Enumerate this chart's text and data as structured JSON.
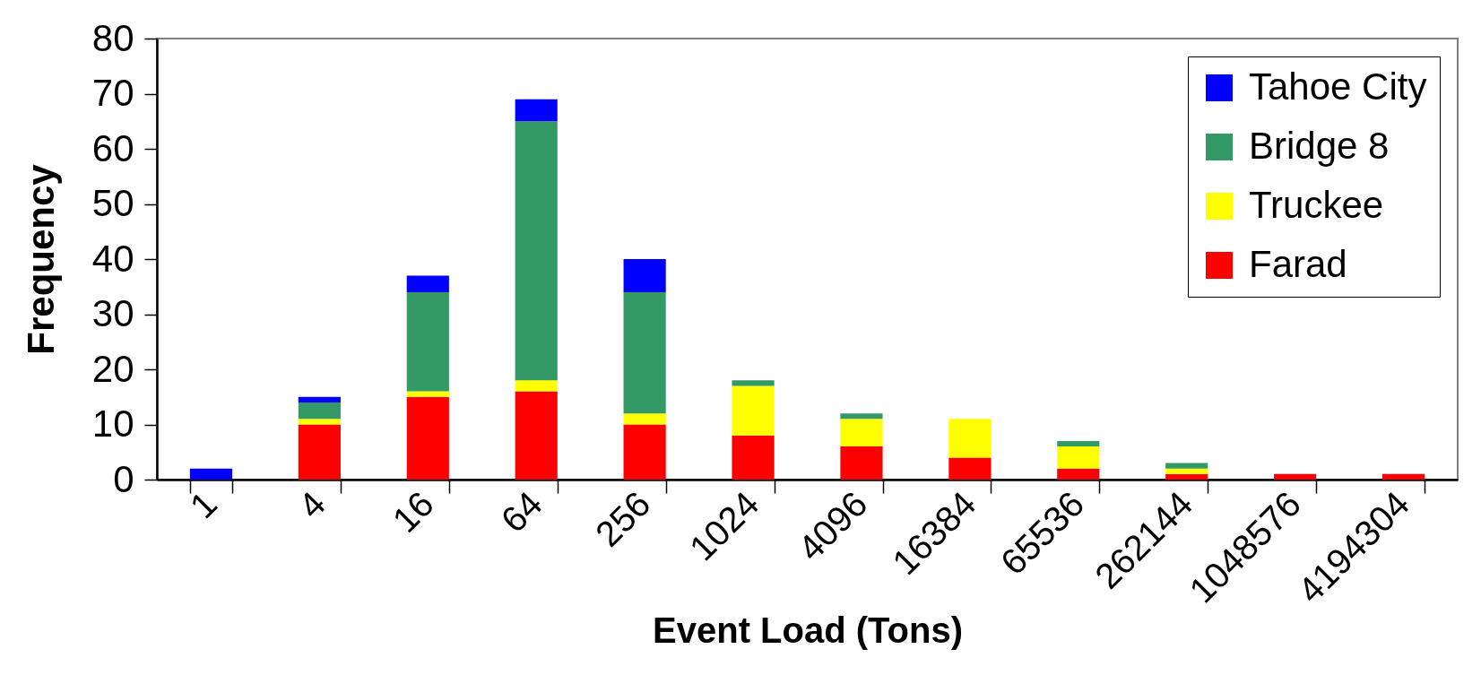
{
  "chart_data": {
    "type": "bar",
    "stacked": true,
    "xlabel": "Event Load (Tons)",
    "ylabel": "Frequency",
    "categories": [
      "1",
      "4",
      "16",
      "64",
      "256",
      "1024",
      "4096",
      "16384",
      "65536",
      "262144",
      "1048576",
      "4194304"
    ],
    "series": [
      {
        "name": "Farad",
        "color": "#ff0000",
        "values": [
          null,
          10,
          15,
          16,
          10,
          8,
          6,
          4,
          2,
          1,
          1,
          1
        ]
      },
      {
        "name": "Truckee",
        "color": "#ffff00",
        "values": [
          null,
          1,
          1,
          2,
          2,
          9,
          5,
          7,
          4,
          1,
          null,
          null
        ]
      },
      {
        "name": "Bridge 8",
        "color": "#339966",
        "values": [
          null,
          3,
          18,
          47,
          22,
          1,
          1,
          null,
          1,
          1,
          null,
          null
        ]
      },
      {
        "name": "Tahoe City",
        "color": "#0000ff",
        "values": [
          2,
          1,
          3,
          4,
          6,
          null,
          null,
          null,
          null,
          null,
          null,
          null
        ]
      }
    ],
    "ylim": [
      0,
      80
    ],
    "yticks": [
      0,
      10,
      20,
      30,
      40,
      50,
      60,
      70,
      80
    ],
    "grid": false,
    "legend": "top right"
  }
}
